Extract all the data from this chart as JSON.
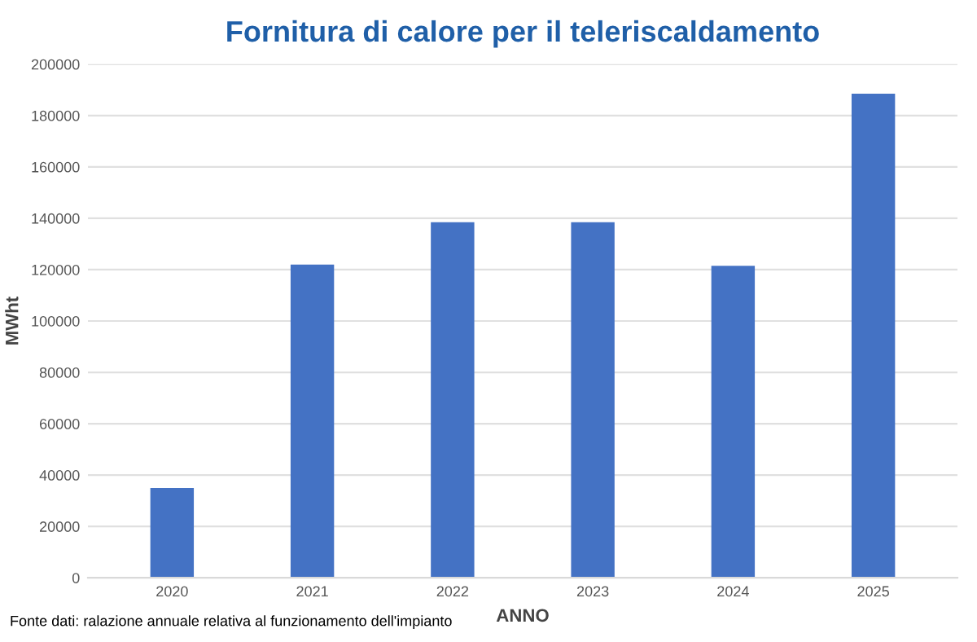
{
  "chart_data": {
    "type": "bar",
    "title": "Fornitura di calore per il teleriscaldamento",
    "xlabel": "ANNO",
    "ylabel": "MWht",
    "categories": [
      "2020",
      "2021",
      "2022",
      "2023",
      "2024",
      "2025"
    ],
    "values": [
      35000,
      122000,
      138500,
      138500,
      121500,
      188500
    ],
    "color": "#4472c4",
    "ylim": [
      0,
      200000
    ],
    "yticks": [
      0,
      20000,
      40000,
      60000,
      80000,
      100000,
      120000,
      140000,
      160000,
      180000,
      200000
    ],
    "grid": "y",
    "annotations": [
      "Fonte dati: ralazione annuale relativa al funzionamento dell'impianto"
    ]
  }
}
